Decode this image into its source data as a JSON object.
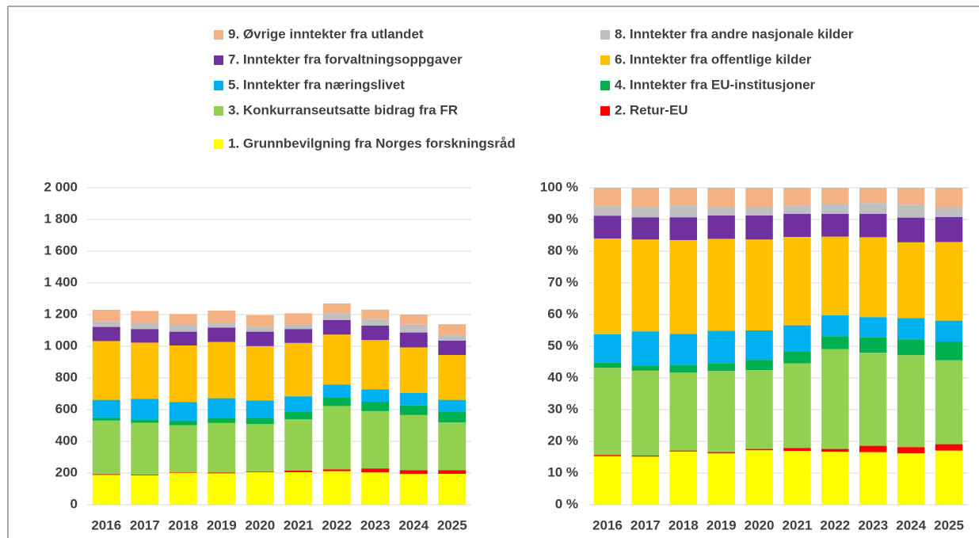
{
  "chart_data": [
    {
      "type": "stacked-bar",
      "categories": [
        "2016",
        "2017",
        "2018",
        "2019",
        "2020",
        "2021",
        "2022",
        "2023",
        "2024",
        "2025"
      ],
      "ylim": [
        0,
        2000
      ],
      "yticks": [
        0,
        200,
        400,
        600,
        800,
        {
          "value": 1000,
          "label": "1 000"
        },
        {
          "value": 1200,
          "label": "1 200"
        },
        {
          "value": 1400,
          "label": "1 400"
        },
        {
          "value": 1600,
          "label": "1 600"
        },
        {
          "value": 1800,
          "label": "1 800"
        },
        {
          "value": 2000,
          "label": "2 000"
        }
      ],
      "grid": true,
      "legend": "top",
      "series": [
        {
          "name": "1. Grunnbevilgning fra Norges forskningsråd",
          "color": "#ffff00",
          "values": [
            188,
            186,
            202,
            198,
            206,
            205,
            212,
            204,
            194,
            195
          ]
        },
        {
          "name": "2. Retur-EU",
          "color": "#ff0000",
          "values": [
            5,
            4,
            4,
            5,
            5,
            11,
            11,
            25,
            24,
            23
          ]
        },
        {
          "name": "3. Konkurranseutsatte bidrag fra FR",
          "color": "#92d050",
          "values": [
            338,
            327,
            296,
            313,
            298,
            323,
            400,
            362,
            348,
            302
          ]
        },
        {
          "name": "4. Inntekter fra EU-institusjoner",
          "color": "#00b050",
          "values": [
            20,
            20,
            29,
            31,
            38,
            46,
            52,
            59,
            60,
            67
          ]
        },
        {
          "name": "5. Inntekter fra næringslivet",
          "color": "#00b0f0",
          "values": [
            111,
            132,
            118,
            125,
            111,
            99,
            84,
            79,
            80,
            75
          ]
        },
        {
          "name": "6. Inntekter fra offentlige kilder",
          "color": "#ffc000",
          "values": [
            371,
            354,
            356,
            355,
            343,
            337,
            315,
            310,
            287,
            283
          ]
        },
        {
          "name": "7. Inntekter fra forvaltningsoppgaver",
          "color": "#7030a0",
          "values": [
            89,
            86,
            87,
            91,
            91,
            88,
            91,
            91,
            94,
            90
          ]
        },
        {
          "name": "8. Inntekter fra andre nasjonale kilder",
          "color": "#bfbfbf",
          "values": [
            37,
            39,
            43,
            32,
            32,
            30,
            41,
            42,
            49,
            36
          ]
        },
        {
          "name": "9. Øvrige inntekter fra utlandet",
          "color": "#f4b183",
          "values": [
            71,
            75,
            69,
            75,
            72,
            69,
            64,
            59,
            64,
            68
          ]
        }
      ]
    },
    {
      "type": "stacked-bar",
      "categories": [
        "2016",
        "2017",
        "2018",
        "2019",
        "2020",
        "2021",
        "2022",
        "2023",
        "2024",
        "2025"
      ],
      "ylim": [
        0,
        100
      ],
      "yticks": [
        {
          "value": 0,
          "label": "0 %"
        },
        {
          "value": 10,
          "label": "10 %"
        },
        {
          "value": 20,
          "label": "20 %"
        },
        {
          "value": 30,
          "label": "30 %"
        },
        {
          "value": 40,
          "label": "40 %"
        },
        {
          "value": 50,
          "label": "50 %"
        },
        {
          "value": 60,
          "label": "60 %"
        },
        {
          "value": 70,
          "label": "70 %"
        },
        {
          "value": 80,
          "label": "80 %"
        },
        {
          "value": 90,
          "label": "90 %"
        },
        {
          "value": 100,
          "label": "100 %"
        }
      ],
      "grid": true,
      "series": [
        {
          "color": "#ffff00",
          "values": [
            15.3,
            15.2,
            16.8,
            16.2,
            17.2,
            17.0,
            16.7,
            16.6,
            16.2,
            17.1
          ]
        },
        {
          "color": "#ff0000",
          "values": [
            0.4,
            0.3,
            0.3,
            0.4,
            0.4,
            0.9,
            0.9,
            2.0,
            2.0,
            2.0
          ]
        },
        {
          "color": "#92d050",
          "values": [
            27.5,
            26.8,
            24.6,
            25.6,
            24.9,
            26.7,
            31.5,
            29.4,
            29.0,
            26.5
          ]
        },
        {
          "color": "#00b050",
          "values": [
            1.6,
            1.6,
            2.4,
            2.5,
            3.2,
            3.8,
            4.1,
            4.8,
            5.0,
            5.9
          ]
        },
        {
          "color": "#00b0f0",
          "values": [
            9.0,
            10.8,
            9.8,
            10.2,
            9.3,
            8.2,
            6.6,
            6.4,
            6.7,
            6.6
          ]
        },
        {
          "color": "#ffc000",
          "values": [
            30.2,
            29.0,
            29.6,
            29.0,
            28.7,
            27.9,
            24.8,
            25.2,
            23.9,
            24.8
          ]
        },
        {
          "color": "#7030a0",
          "values": [
            7.2,
            7.0,
            7.2,
            7.4,
            7.6,
            7.3,
            7.2,
            7.4,
            7.8,
            7.9
          ]
        },
        {
          "color": "#bfbfbf",
          "values": [
            3.0,
            3.2,
            3.6,
            2.6,
            2.7,
            2.5,
            3.2,
            3.4,
            4.1,
            3.2
          ]
        },
        {
          "color": "#f4b183",
          "values": [
            5.8,
            6.1,
            5.7,
            6.1,
            6.0,
            5.7,
            5.0,
            4.8,
            5.3,
            6.0
          ]
        }
      ]
    }
  ]
}
